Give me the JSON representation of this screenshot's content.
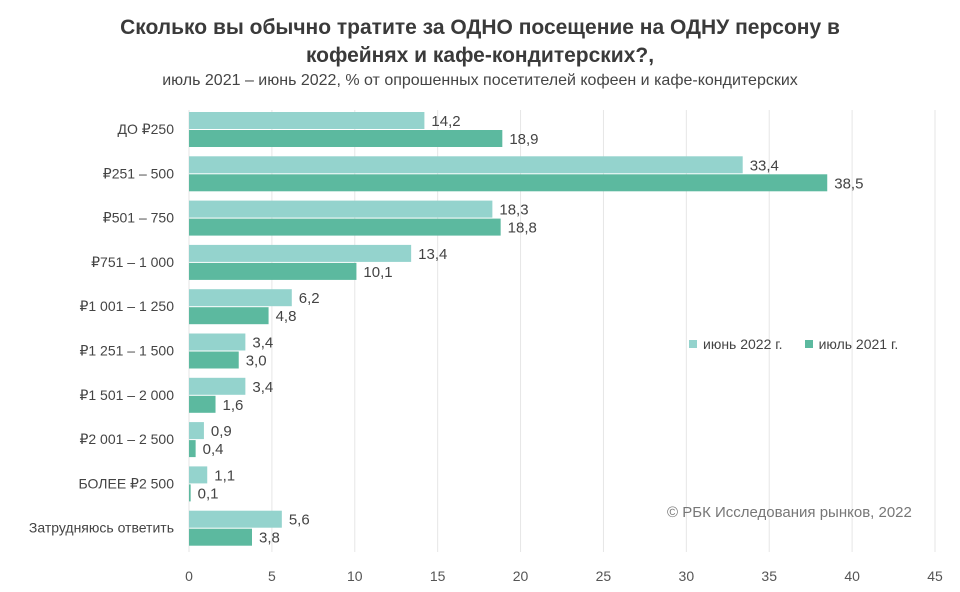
{
  "colors": {
    "june2022": "#94d3cd",
    "july2021": "#5cb99f",
    "grid": "#e6e6e6"
  },
  "chart_data": {
    "type": "bar",
    "orientation": "horizontal",
    "title_line1": "Сколько вы обычно тратите за ОДНО посещение на ОДНУ персону в",
    "title_line2": "кофейнях и кафе-кондитерских?,",
    "subtitle": "июль 2021 – июнь 2022, % от опрошенных посетителей кофеен и кафе-кондитерских",
    "categories": [
      "ДО ₽250",
      "₽251 – 500",
      "₽501 – 750",
      "₽751 – 1 000",
      "₽1 001 – 1 250",
      "₽1 251 – 1 500",
      "₽1 501 – 2 000",
      "₽2 001 – 2 500",
      "БОЛЕЕ ₽2 500",
      "Затрудняюсь ответить"
    ],
    "series": [
      {
        "name": "июнь 2022 г.",
        "values": [
          14.2,
          33.4,
          18.3,
          13.4,
          6.2,
          3.4,
          3.4,
          0.9,
          1.1,
          5.6
        ],
        "labels": [
          "14,2",
          "33,4",
          "18,3",
          "13,4",
          "6,2",
          "3,4",
          "3,4",
          "0,9",
          "1,1",
          "5,6"
        ]
      },
      {
        "name": "июль 2021 г.",
        "values": [
          18.9,
          38.5,
          18.8,
          10.1,
          4.8,
          3.0,
          1.6,
          0.4,
          0.1,
          3.8
        ],
        "labels": [
          "18,9",
          "38,5",
          "18,8",
          "10,1",
          "4,8",
          "3,0",
          "1,6",
          "0,4",
          "0,1",
          "3,8"
        ]
      }
    ],
    "xlim": [
      0,
      45
    ],
    "xticks": [
      "0",
      "5",
      "10",
      "15",
      "20",
      "25",
      "30",
      "35",
      "40",
      "45"
    ],
    "grid": true,
    "legend_position": "right"
  },
  "credit": "© РБК Исследования рынков, 2022"
}
